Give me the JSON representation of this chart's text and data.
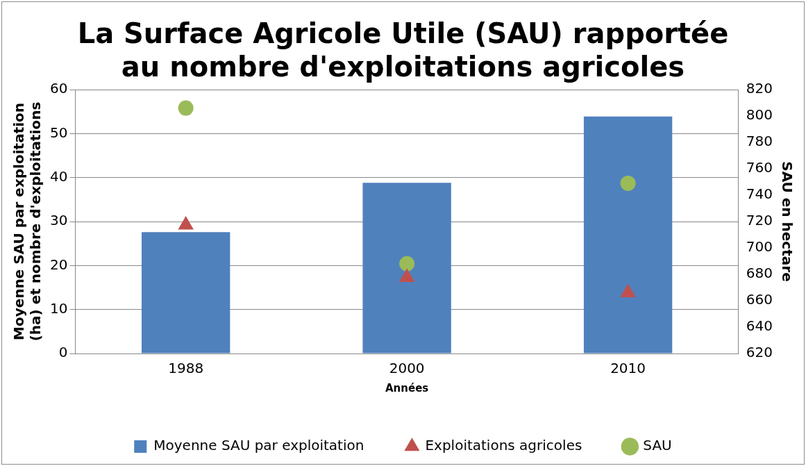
{
  "chart_data": {
    "type": "bar",
    "title": "La Surface Agricole Utile (SAU) rapportée au nombre d'exploitations agricoles",
    "xlabel": "Années",
    "ylabel": "Moyenne SAU par exploitation (ha) et nombre d'exploitations",
    "y2label": "SAU en hectare",
    "categories": [
      "1988",
      "2000",
      "2010"
    ],
    "series": [
      {
        "name": "Moyenne SAU par exploitation",
        "color": "#4f81bd",
        "values": [
          27.6,
          38.8,
          53.9
        ]
      },
      {
        "name": "Exploitations agricoles",
        "type": "scatter",
        "marker": "triangle",
        "color": "#c0504d",
        "values": [
          29.2,
          17.3,
          13.8
        ]
      },
      {
        "name": "SAU",
        "type": "scatter",
        "marker": "circle",
        "color": "#9bbb59",
        "axis": "y2",
        "values": [
          806,
          688,
          749
        ]
      }
    ],
    "ylim": [
      0,
      60
    ],
    "yticks": [
      0,
      10,
      20,
      30,
      40,
      50,
      60
    ],
    "y2lim": [
      620,
      820
    ],
    "y2ticks": [
      620,
      640,
      660,
      680,
      700,
      720,
      740,
      760,
      780,
      800,
      820
    ],
    "grid": "y",
    "legend": "bottom"
  }
}
